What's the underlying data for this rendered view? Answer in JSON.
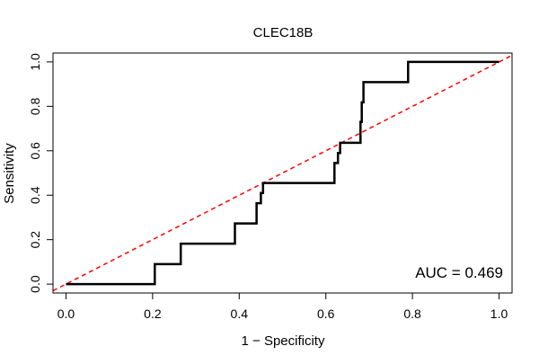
{
  "chart_data": {
    "type": "line",
    "title": "CLEC18B",
    "xlabel": "1 − Specificity",
    "ylabel": "Sensitivity",
    "xlim": [
      -0.03,
      1.03
    ],
    "ylim": [
      -0.04,
      1.04
    ],
    "grid": false,
    "xticks": [
      {
        "value": 0.0,
        "label": "0.0"
      },
      {
        "value": 0.2,
        "label": "0.2"
      },
      {
        "value": 0.4,
        "label": "0.4"
      },
      {
        "value": 0.6,
        "label": "0.6"
      },
      {
        "value": 0.8,
        "label": "0.8"
      },
      {
        "value": 1.0,
        "label": "1.0"
      }
    ],
    "yticks": [
      {
        "value": 0.0,
        "label": "0.0"
      },
      {
        "value": 0.2,
        "label": "0.2"
      },
      {
        "value": 0.4,
        "label": "0.4"
      },
      {
        "value": 0.6,
        "label": "0.6"
      },
      {
        "value": 0.8,
        "label": "0.8"
      },
      {
        "value": 1.0,
        "label": "1.0"
      }
    ],
    "series": [
      {
        "name": "ROC curve",
        "color": "#000000",
        "style": "step",
        "x": [
          0.0,
          0.153,
          0.205,
          0.205,
          0.265,
          0.265,
          0.31,
          0.39,
          0.39,
          0.44,
          0.44,
          0.45,
          0.45,
          0.455,
          0.455,
          0.62,
          0.62,
          0.628,
          0.628,
          0.633,
          0.633,
          0.67,
          0.68,
          0.68,
          0.683,
          0.683,
          0.687,
          0.687,
          0.78,
          0.79,
          0.79,
          1.0
        ],
        "y": [
          0.0,
          0.0,
          0.0,
          0.09,
          0.09,
          0.182,
          0.182,
          0.182,
          0.273,
          0.273,
          0.364,
          0.364,
          0.41,
          0.41,
          0.455,
          0.455,
          0.545,
          0.545,
          0.59,
          0.59,
          0.636,
          0.636,
          0.636,
          0.73,
          0.73,
          0.818,
          0.818,
          0.909,
          0.909,
          0.909,
          1.0,
          1.0
        ]
      },
      {
        "name": "Reference line",
        "color": "#ff0000",
        "style": "dashed",
        "x": [
          -0.03,
          1.03
        ],
        "y": [
          -0.03,
          1.03
        ]
      }
    ],
    "annotations": [
      {
        "text": "AUC = 0.469",
        "position": "bottom-right"
      }
    ]
  }
}
